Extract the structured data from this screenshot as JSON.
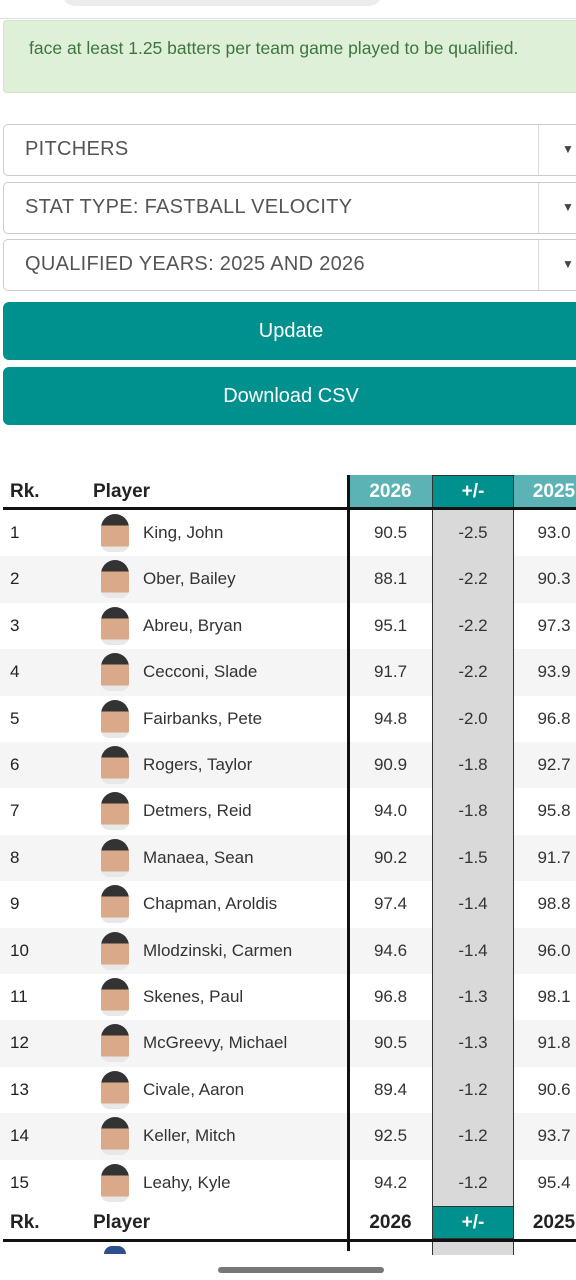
{
  "notice": "face at least 1.25 batters per team game played to be qualified.",
  "selects": [
    "PITCHERS",
    "STAT TYPE: FASTBALL VELOCITY",
    "QUALIFIED YEARS: 2025 AND 2026"
  ],
  "buttons": [
    "Update",
    "Download CSV"
  ],
  "table": {
    "headers": [
      "Rk.",
      "Player",
      "2026",
      "+/-",
      "2025"
    ],
    "rows": [
      [
        "1",
        "King, John",
        "90.5",
        "-2.5",
        "93.0"
      ],
      [
        "2",
        "Ober, Bailey",
        "88.1",
        "-2.2",
        "90.3"
      ],
      [
        "3",
        "Abreu, Bryan",
        "95.1",
        "-2.2",
        "97.3"
      ],
      [
        "4",
        "Cecconi, Slade",
        "91.7",
        "-2.2",
        "93.9"
      ],
      [
        "5",
        "Fairbanks, Pete",
        "94.8",
        "-2.0",
        "96.8"
      ],
      [
        "6",
        "Rogers, Taylor",
        "90.9",
        "-1.8",
        "92.7"
      ],
      [
        "7",
        "Detmers, Reid",
        "94.0",
        "-1.8",
        "95.8"
      ],
      [
        "8",
        "Manaea, Sean",
        "90.2",
        "-1.5",
        "91.7"
      ],
      [
        "9",
        "Chapman, Aroldis",
        "97.4",
        "-1.4",
        "98.8"
      ],
      [
        "10",
        "Mlodzinski, Carmen",
        "94.6",
        "-1.4",
        "96.0"
      ],
      [
        "11",
        "Skenes, Paul",
        "96.8",
        "-1.3",
        "98.1"
      ],
      [
        "12",
        "McGreevy, Michael",
        "90.5",
        "-1.3",
        "91.8"
      ],
      [
        "13",
        "Civale, Aaron",
        "89.4",
        "-1.2",
        "90.6"
      ],
      [
        "14",
        "Keller, Mitch",
        "92.5",
        "-1.2",
        "93.7"
      ],
      [
        "15",
        "Leahy, Kyle",
        "94.2",
        "-1.2",
        "95.4"
      ]
    ]
  }
}
